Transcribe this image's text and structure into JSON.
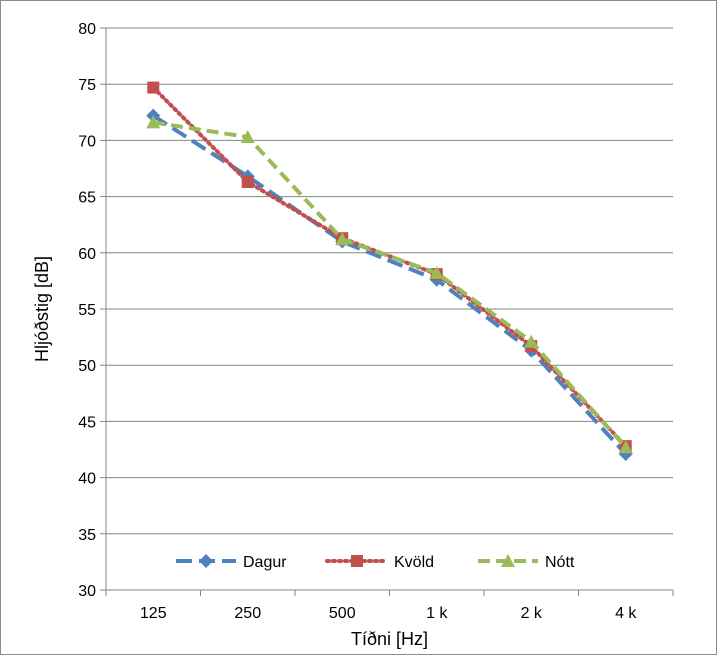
{
  "chart_data": {
    "type": "line",
    "title": "",
    "xlabel": "Tíðni [Hz]",
    "ylabel": "Hljóðstig [dB]",
    "categories": [
      "125",
      "250",
      "500",
      "1 k",
      "2 k",
      "4 k"
    ],
    "ylim": [
      30,
      80
    ],
    "yticks": [
      30,
      35,
      40,
      45,
      50,
      55,
      60,
      65,
      70,
      75,
      80
    ],
    "grid": true,
    "legend": "bottom-inside",
    "series": [
      {
        "name": "Dagur",
        "values": [
          72.2,
          66.8,
          61.0,
          57.6,
          51.3,
          42.1
        ],
        "color": "#4F81BD",
        "marker": "diamond",
        "dash": "long-dash"
      },
      {
        "name": "Kvöld",
        "values": [
          74.7,
          66.3,
          61.3,
          58.1,
          51.7,
          42.8
        ],
        "color": "#C0504D",
        "marker": "square",
        "dash": "dotted"
      },
      {
        "name": "Nótt",
        "values": [
          71.6,
          70.3,
          61.2,
          58.2,
          52.1,
          42.7
        ],
        "color": "#9BBB59",
        "marker": "triangle",
        "dash": "dash"
      }
    ]
  }
}
